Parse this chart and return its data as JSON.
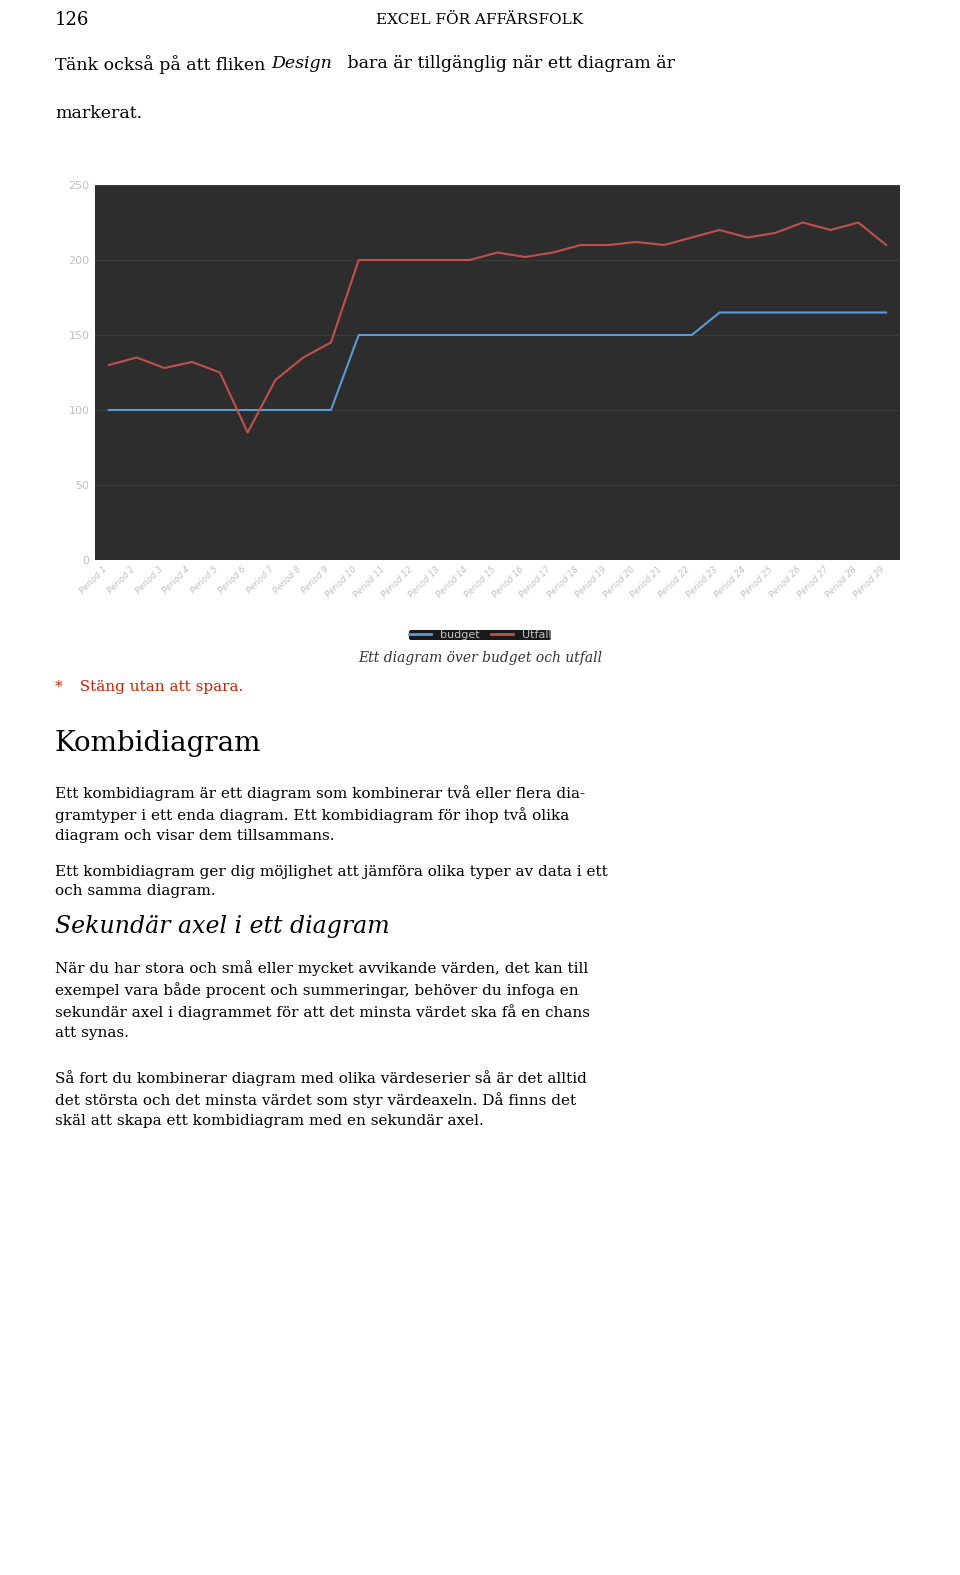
{
  "periods": [
    "Period 1",
    "Period 2",
    "Period 3",
    "Period 4",
    "Period 5",
    "Period 6",
    "Period 7",
    "Period 8",
    "Period 9",
    "Period 10",
    "Period 11",
    "Period 12",
    "Period 13",
    "Period 14",
    "Period 15",
    "Period 16",
    "Period 17",
    "Period 18",
    "Period 19",
    "Period 20",
    "Period 21",
    "Period 22",
    "Period 23",
    "Period 24",
    "Period 25",
    "Period 26",
    "Period 27",
    "Period 28",
    "Period 29"
  ],
  "budget": [
    100,
    100,
    100,
    100,
    100,
    100,
    100,
    100,
    100,
    150,
    150,
    150,
    150,
    150,
    150,
    150,
    150,
    150,
    150,
    150,
    150,
    150,
    165,
    165,
    165,
    165,
    165,
    165,
    165
  ],
  "utfall": [
    130,
    135,
    128,
    132,
    125,
    85,
    120,
    135,
    145,
    200,
    200,
    200,
    200,
    200,
    205,
    202,
    205,
    210,
    210,
    212,
    210,
    215,
    220,
    215,
    218,
    225,
    220,
    225,
    210
  ],
  "budget_color": "#5b9bd5",
  "utfall_color": "#c0504d",
  "chart_bg_color": "#2d2d2d",
  "outer_bg_color": "#1a1a1a",
  "text_color": "#c0c0c0",
  "grid_color": "#484848",
  "ylim": [
    0,
    250
  ],
  "yticks": [
    0,
    50,
    100,
    150,
    200,
    250
  ],
  "legend_budget": "budget",
  "legend_utfall": "Utfall",
  "line_width": 1.5,
  "chart_caption": "Ett diagram över budget och utfall",
  "caption_note": "*   Stäng utan att spara.",
  "page_number": "126",
  "page_title": "EXCEL FÖR AFFÄRSFOLK",
  "intro_normal1": "Tänk också på att fliken ",
  "intro_italic": "Design",
  "intro_normal2": " bara är tillgänglig när ett diagram är",
  "intro_line2": "markerat.",
  "section1_title": "Kombidiagram",
  "section1_p1": "Ett kombidiagram är ett diagram som kombinerar två eller flera dia-\ngramtyper i ett enda diagram. Ett kombidiagram för ihop två olika\ndiagram och visar dem tillsammans.",
  "section1_p2": "Ett kombidiagram ger dig möjlighet att jämföra olika typer av data i ett\noch samma diagram.",
  "section2_title": "Sekundär axel i ett diagram",
  "section2_p1": "När du har stora och små eller mycket avvikande värden, det kan till\nexempel vara både procent och summeringar, behöver du infoga en\nsekundär axel i diagrammet för att det minsta värdet ska få en chans\natt synas.",
  "section2_p2": "Så fort du kombinerar diagram med olika värdeserier så är det alltid\ndet största och det minsta värdet som styr värdeaxeln. Då finns det\nskäl att skapa ett kombidiagram med en sekundär axel."
}
